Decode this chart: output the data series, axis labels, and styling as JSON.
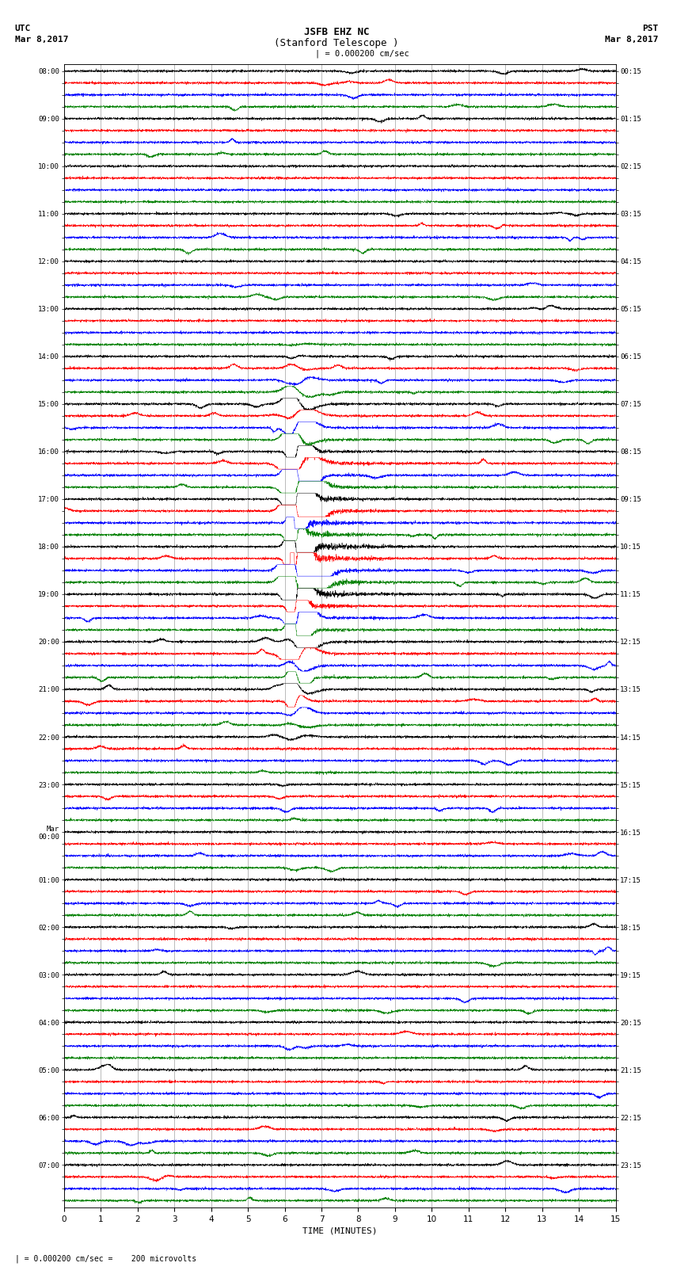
{
  "title_line1": "JSFB EHZ NC",
  "title_line2": "(Stanford Telescope )",
  "scale_label": "| = 0.000200 cm/sec",
  "scale_bar_label": "| = 0.000200 cm/sec =    200 microvolts",
  "utc_label": "UTC",
  "utc_date": "Mar 8,2017",
  "pst_label": "PST",
  "pst_date": "Mar 8,2017",
  "xlabel": "TIME (MINUTES)",
  "left_times": [
    "08:00",
    "",
    "",
    "",
    "09:00",
    "",
    "",
    "",
    "10:00",
    "",
    "",
    "",
    "11:00",
    "",
    "",
    "",
    "12:00",
    "",
    "",
    "",
    "13:00",
    "",
    "",
    "",
    "14:00",
    "",
    "",
    "",
    "15:00",
    "",
    "",
    "",
    "16:00",
    "",
    "",
    "",
    "17:00",
    "",
    "",
    "",
    "18:00",
    "",
    "",
    "",
    "19:00",
    "",
    "",
    "",
    "20:00",
    "",
    "",
    "",
    "21:00",
    "",
    "",
    "",
    "22:00",
    "",
    "",
    "",
    "23:00",
    "",
    "",
    "",
    "Mar\n00:00",
    "",
    "",
    "",
    "01:00",
    "",
    "",
    "",
    "02:00",
    "",
    "",
    "",
    "03:00",
    "",
    "",
    "",
    "04:00",
    "",
    "",
    "",
    "05:00",
    "",
    "",
    "",
    "06:00",
    "",
    "",
    "",
    "07:00",
    "",
    "",
    ""
  ],
  "right_times": [
    "00:15",
    "",
    "",
    "",
    "01:15",
    "",
    "",
    "",
    "02:15",
    "",
    "",
    "",
    "03:15",
    "",
    "",
    "",
    "04:15",
    "",
    "",
    "",
    "05:15",
    "",
    "",
    "",
    "06:15",
    "",
    "",
    "",
    "07:15",
    "",
    "",
    "",
    "08:15",
    "",
    "",
    "",
    "09:15",
    "",
    "",
    "",
    "10:15",
    "",
    "",
    "",
    "11:15",
    "",
    "",
    "",
    "12:15",
    "",
    "",
    "",
    "13:15",
    "",
    "",
    "",
    "14:15",
    "",
    "",
    "",
    "15:15",
    "",
    "",
    "",
    "16:15",
    "",
    "",
    "",
    "17:15",
    "",
    "",
    "",
    "18:15",
    "",
    "",
    "",
    "19:15",
    "",
    "",
    "",
    "20:15",
    "",
    "",
    "",
    "21:15",
    "",
    "",
    "",
    "22:15",
    "",
    "",
    "",
    "23:15",
    "",
    "",
    ""
  ],
  "colors": [
    "black",
    "red",
    "blue",
    "green"
  ],
  "n_rows": 96,
  "n_points": 3600,
  "xmin": 0,
  "xmax": 15,
  "background_color": "white",
  "seed": 42
}
